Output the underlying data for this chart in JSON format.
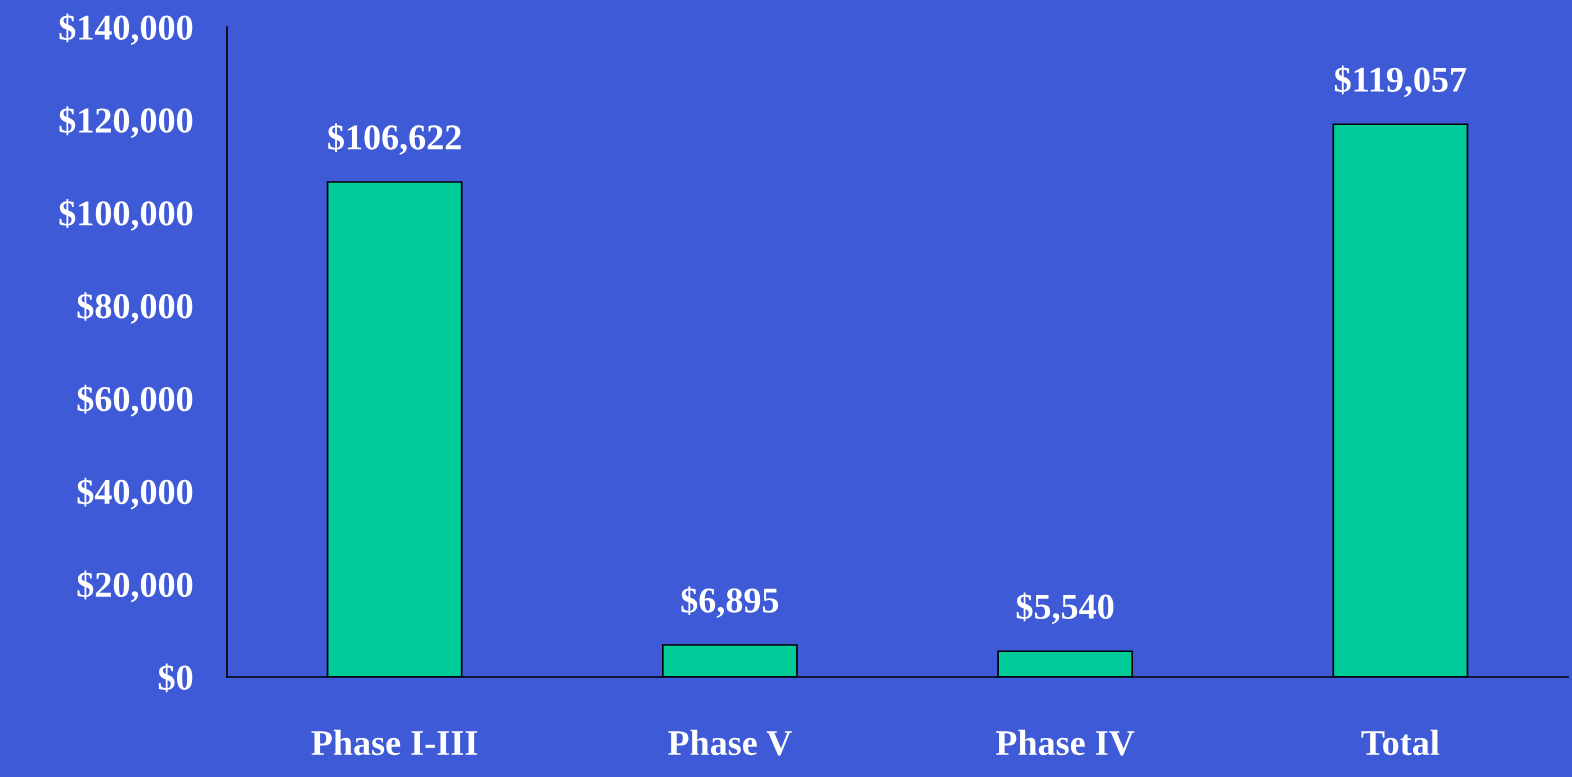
{
  "chart_data": {
    "type": "bar",
    "categories": [
      "Phase I-III",
      "Phase V",
      "Phase IV",
      "Total"
    ],
    "values": [
      106622,
      6895,
      5540,
      119057
    ],
    "color": "#00cc99",
    "value_labels": [
      "$106,622",
      "$6,895",
      "$5,540",
      "$119,057"
    ],
    "ylim": [
      0,
      140000
    ],
    "yticks": [
      {
        "value": 0,
        "label": "$0"
      },
      {
        "value": 20000,
        "label": "$20,000"
      },
      {
        "value": 40000,
        "label": "$40,000"
      },
      {
        "value": 60000,
        "label": "$60,000"
      },
      {
        "value": 80000,
        "label": "$80,000"
      },
      {
        "value": 100000,
        "label": "$100,000"
      },
      {
        "value": 120000,
        "label": "$120,000"
      },
      {
        "value": 140000,
        "label": "$140,000"
      }
    ],
    "grid": false,
    "legend": false
  }
}
